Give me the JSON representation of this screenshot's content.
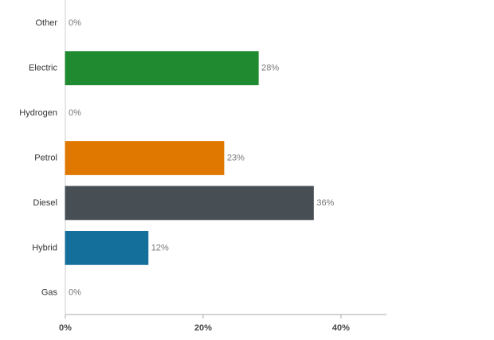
{
  "chart_data": {
    "type": "bar",
    "orientation": "horizontal",
    "categories": [
      "Other",
      "Electric",
      "Hydrogen",
      "Petrol",
      "Diesel",
      "Hybrid",
      "Gas"
    ],
    "values": [
      0,
      28,
      0,
      23,
      36,
      12,
      0
    ],
    "value_labels": [
      "0%",
      "28%",
      "0%",
      "23%",
      "36%",
      "12%",
      "0%"
    ],
    "colors": [
      "#b0b0b0",
      "#1f8a2f",
      "#2e9b3e",
      "#e07800",
      "#474f55",
      "#14709a",
      "#8a5a2b"
    ],
    "xlim": [
      0,
      46.6
    ],
    "xticks": [
      {
        "value": 0,
        "label": "0%"
      },
      {
        "value": 20,
        "label": "20%"
      },
      {
        "value": 40,
        "label": "40%"
      }
    ],
    "grid": false
  }
}
